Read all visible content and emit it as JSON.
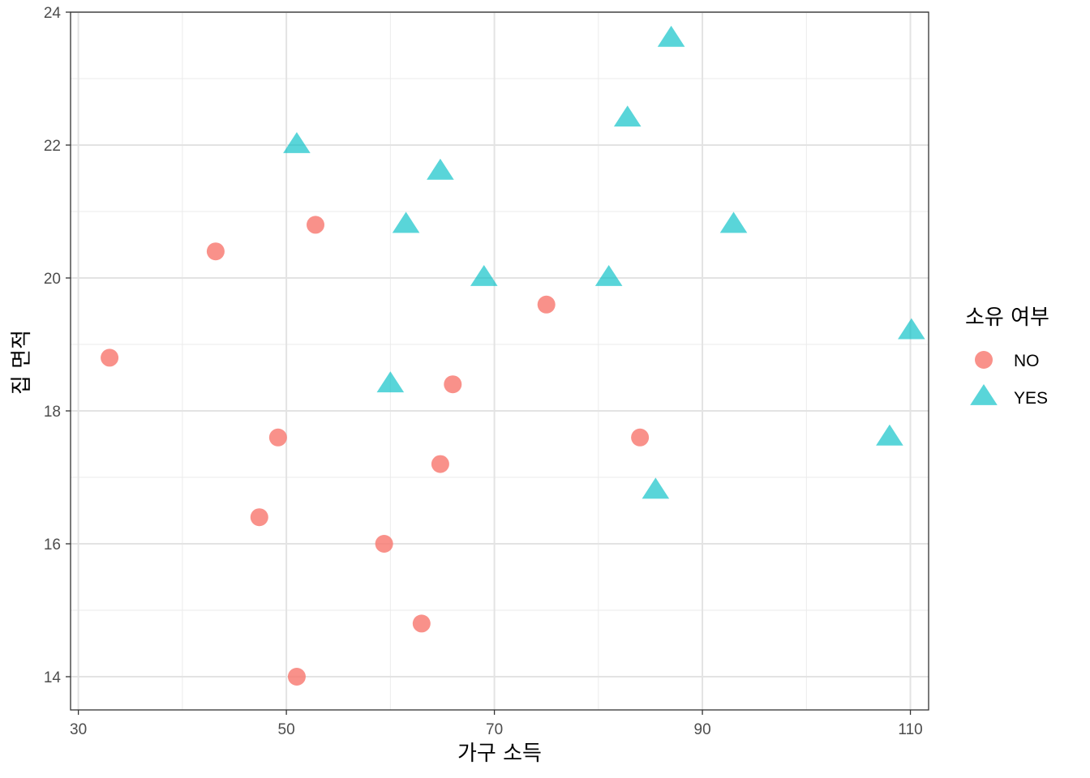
{
  "chart_data": {
    "type": "scatter",
    "title": "",
    "xlabel": "가구 소득",
    "ylabel": "집 면적",
    "xlim": [
      29.25,
      111.75
    ],
    "ylim": [
      13.5,
      24.0
    ],
    "x_ticks": [
      30,
      50,
      70,
      90,
      110
    ],
    "y_ticks": [
      14,
      16,
      18,
      20,
      22,
      24
    ],
    "grid": true,
    "legend": {
      "title": "소유 여부",
      "position": "right",
      "entries": [
        {
          "label": "NO",
          "shape": "circle",
          "color": "#F8766D"
        },
        {
          "label": "YES",
          "shape": "triangle",
          "color": "#00BFC4"
        }
      ]
    },
    "series": [
      {
        "name": "NO",
        "shape": "circle",
        "color": "#F8766D",
        "points": [
          {
            "x": 33.0,
            "y": 18.8
          },
          {
            "x": 43.2,
            "y": 20.4
          },
          {
            "x": 52.8,
            "y": 20.8
          },
          {
            "x": 49.2,
            "y": 17.6
          },
          {
            "x": 47.4,
            "y": 16.4
          },
          {
            "x": 51.0,
            "y": 14.0
          },
          {
            "x": 59.4,
            "y": 16.0
          },
          {
            "x": 63.0,
            "y": 14.8
          },
          {
            "x": 64.8,
            "y": 17.2
          },
          {
            "x": 66.0,
            "y": 18.4
          },
          {
            "x": 75.0,
            "y": 19.6
          },
          {
            "x": 84.0,
            "y": 17.6
          }
        ]
      },
      {
        "name": "YES",
        "shape": "triangle",
        "color": "#00BFC4",
        "points": [
          {
            "x": 51.0,
            "y": 22.0
          },
          {
            "x": 61.5,
            "y": 20.8
          },
          {
            "x": 64.8,
            "y": 21.6
          },
          {
            "x": 69.0,
            "y": 20.0
          },
          {
            "x": 60.0,
            "y": 18.4
          },
          {
            "x": 81.0,
            "y": 20.0
          },
          {
            "x": 82.8,
            "y": 22.4
          },
          {
            "x": 87.0,
            "y": 23.6
          },
          {
            "x": 93.0,
            "y": 20.8
          },
          {
            "x": 85.5,
            "y": 16.8
          },
          {
            "x": 108.0,
            "y": 17.6
          },
          {
            "x": 110.1,
            "y": 19.2
          }
        ]
      }
    ]
  }
}
